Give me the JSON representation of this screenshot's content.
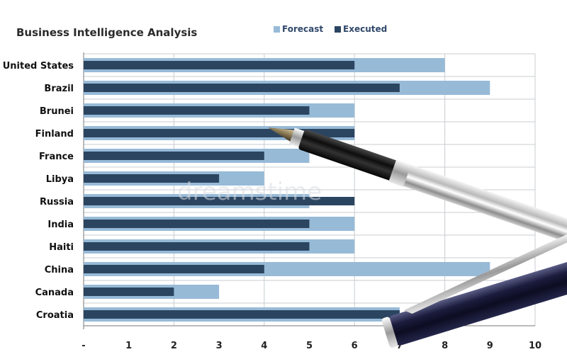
{
  "chart_data": {
    "type": "bar",
    "orientation": "horizontal",
    "title": "Business Intelligence Analysis",
    "categories": [
      "United States",
      "Brazil",
      "Brunei",
      "Finland",
      "France",
      "Libya",
      "Russia",
      "India",
      "Haiti",
      "China",
      "Canada",
      "Croatia"
    ],
    "series": [
      {
        "name": "Forecast",
        "color": "#97bad7",
        "values": [
          8,
          9,
          6,
          6,
          5,
          4,
          5,
          6,
          6,
          9,
          3,
          7
        ]
      },
      {
        "name": "Executed",
        "color": "#2b4561",
        "values": [
          6,
          7,
          5,
          6,
          4,
          3,
          6,
          5,
          5,
          4,
          2,
          7
        ]
      }
    ],
    "xlim": [
      0,
      10
    ],
    "x_tick_labels": [
      "-",
      "1",
      "2",
      "3",
      "4",
      "5",
      "6",
      "7",
      "8",
      "9",
      "10"
    ],
    "grid": true,
    "legend_position": "top"
  },
  "watermark": "dreamstime"
}
